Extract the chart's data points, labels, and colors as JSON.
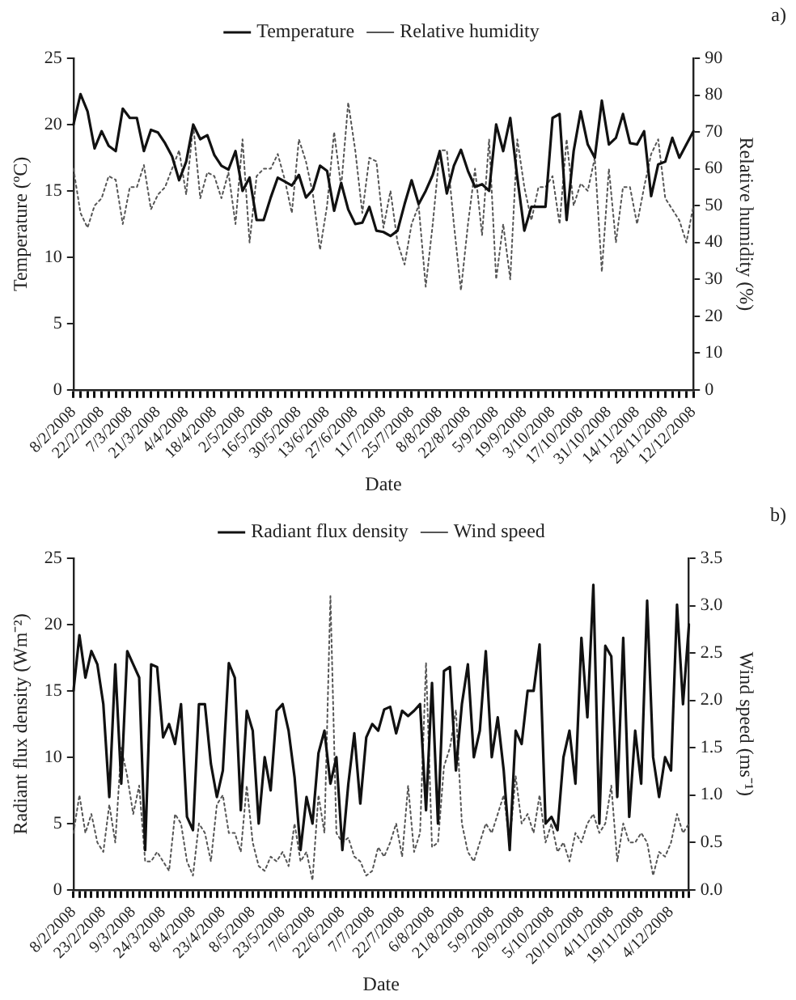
{
  "chart_data": [
    {
      "type": "line",
      "annotations": [
        "a)"
      ],
      "xlabel": "Date",
      "ylabel": "Temperature (ºC)",
      "y2label": "Relative humidity (%)",
      "legend": "top",
      "categories": [
        "8/2/2008",
        null,
        null,
        null,
        "22/2/2008",
        null,
        null,
        null,
        "7/3/2008",
        null,
        null,
        null,
        "21/3/2008",
        null,
        null,
        null,
        "4/4/2008",
        null,
        null,
        null,
        "18/4/2008",
        null,
        null,
        null,
        "2/5/2008",
        null,
        null,
        null,
        "16/5/2008",
        null,
        null,
        null,
        "30/5/2008",
        null,
        null,
        null,
        "13/6/2008",
        null,
        null,
        null,
        "27/6/2008",
        null,
        null,
        null,
        "11/7/2008",
        null,
        null,
        null,
        "25/7/2008",
        null,
        null,
        null,
        "8/8/2008",
        null,
        null,
        null,
        "22/8/2008",
        null,
        null,
        null,
        "5/9/2008",
        null,
        null,
        null,
        "19/9/2008",
        null,
        null,
        null,
        "3/10/2008",
        null,
        null,
        null,
        "17/10/2008",
        null,
        null,
        null,
        "31/10/2008",
        null,
        null,
        null,
        "14/11/2008",
        null,
        null,
        null,
        "28/11/2008",
        null,
        null,
        null,
        "12/12/2008"
      ],
      "ylim": [
        0,
        25
      ],
      "yticks": [
        0,
        5,
        10,
        15,
        20,
        25
      ],
      "y2lim": [
        0,
        90
      ],
      "y2ticks": [
        0,
        10,
        20,
        30,
        40,
        50,
        60,
        70,
        80,
        90
      ],
      "series": [
        {
          "name": "Temperature",
          "color": "#111111",
          "line_style": "solid",
          "values": [
            20,
            22.3,
            21,
            18.2,
            19.5,
            18.4,
            18,
            21.2,
            20.5,
            20.5,
            18,
            19.6,
            19.4,
            18.6,
            17.6,
            15.8,
            17.2,
            20,
            18.9,
            19.2,
            17.7,
            16.9,
            16.6,
            18,
            15,
            16,
            12.8,
            12.8,
            14.5,
            16,
            15.7,
            15.4,
            16.2,
            14.5,
            15.1,
            16.9,
            16.5,
            13.5,
            15.6,
            13.6,
            12.5,
            12.6,
            13.8,
            12,
            11.9,
            11.6,
            12,
            14,
            15.8,
            14,
            15,
            16.2,
            18,
            14.8,
            16.9,
            18.1,
            16.5,
            15.3,
            15.5,
            15,
            20,
            18,
            20.5,
            16,
            12,
            13.8,
            13.8,
            13.8,
            20.5,
            20.8,
            12.8,
            18,
            21,
            18.5,
            17.5,
            21.8,
            18.5,
            19,
            20.8,
            18.6,
            18.5,
            19.5,
            14.6,
            17,
            17.2,
            19,
            17.5,
            18.5,
            19.5
          ]
        },
        {
          "name": "Relative humidity",
          "color": "#555555",
          "line_style": "dotted",
          "axis": "y2",
          "values": [
            60,
            48,
            44,
            50,
            52,
            58,
            57,
            45,
            55,
            55,
            61,
            49,
            53,
            55,
            60,
            65,
            53,
            72,
            52,
            59,
            58,
            52,
            59,
            45,
            68,
            40,
            58,
            60,
            60,
            64,
            57,
            48,
            68,
            62,
            53,
            38,
            50,
            70,
            55,
            78,
            65,
            48,
            63,
            62,
            44,
            54,
            40,
            34,
            45,
            50,
            28,
            45,
            65,
            65,
            45,
            27,
            45,
            60,
            42,
            68,
            30,
            45,
            30,
            68,
            55,
            46,
            55,
            55,
            58,
            45,
            68,
            50,
            56,
            54,
            63,
            32,
            60,
            40,
            55,
            55,
            45,
            55,
            64,
            68,
            52,
            49,
            46,
            40,
            50
          ]
        }
      ]
    },
    {
      "type": "line",
      "annotations": [
        "b)"
      ],
      "xlabel": "Date",
      "ylabel": "Radiant flux density (Wm⁻²)",
      "y2label": "Wind speed (ms⁻¹)",
      "legend": "top",
      "categories": [
        "8/2/2008",
        null,
        null,
        null,
        null,
        "23/2/2008",
        null,
        null,
        null,
        null,
        "9/3/2008",
        null,
        null,
        null,
        null,
        "24/3/2008",
        null,
        null,
        null,
        null,
        "8/4/2008",
        null,
        null,
        null,
        null,
        "23/4/2008",
        null,
        null,
        null,
        null,
        "8/5/2008",
        null,
        null,
        null,
        null,
        "23/5/2008",
        null,
        null,
        null,
        null,
        "7/6/2008",
        null,
        null,
        null,
        null,
        "22/6/2008",
        null,
        null,
        null,
        null,
        "7/7/2008",
        null,
        null,
        null,
        null,
        "22/7/2008",
        null,
        null,
        null,
        null,
        "6/8/2008",
        null,
        null,
        null,
        null,
        "21/8/2008",
        null,
        null,
        null,
        null,
        "5/9/2008",
        null,
        null,
        null,
        null,
        "20/9/2008",
        null,
        null,
        null,
        null,
        "5/10/2008",
        null,
        null,
        null,
        null,
        "20/10/2008",
        null,
        null,
        null,
        null,
        "4/11/2008",
        null,
        null,
        null,
        null,
        "19/11/2008",
        null,
        null,
        null,
        null,
        "4/12/2008",
        null,
        null,
        null
      ],
      "ylim": [
        0,
        25
      ],
      "yticks": [
        0,
        5,
        10,
        15,
        20,
        25
      ],
      "y2lim": [
        0,
        3.5
      ],
      "y2ticks": [
        {
          "value": 0,
          "label": "0.0"
        },
        0.5,
        {
          "value": 1,
          "label": "1.0"
        },
        1.5,
        {
          "value": 2,
          "label": "2.0"
        },
        2.5,
        {
          "value": 3,
          "label": "3.0"
        },
        3.5
      ],
      "series": [
        {
          "name": "Radiant flux density",
          "color": "#111111",
          "line_style": "solid",
          "values": [
            15,
            19.2,
            16,
            18,
            17,
            14,
            7,
            17,
            8,
            18,
            17,
            16,
            3,
            17,
            16.8,
            11.5,
            12.5,
            11,
            14,
            5.5,
            4.5,
            14,
            14,
            9.5,
            7,
            9,
            17.1,
            16,
            6,
            13.5,
            12,
            5,
            10,
            7.5,
            13.5,
            14,
            12,
            8.5,
            3,
            7,
            5,
            10.3,
            12,
            8,
            10,
            3,
            8,
            11.8,
            6.5,
            11.5,
            12.5,
            12,
            13.6,
            13.8,
            11.8,
            13.5,
            13.1,
            13.5,
            14,
            6,
            15.6,
            5,
            16.5,
            16.8,
            9,
            14,
            17,
            10,
            12,
            18,
            10,
            13,
            9,
            3,
            12,
            11,
            15,
            15,
            18.5,
            5,
            5.5,
            4.5,
            10,
            12,
            8,
            19,
            13,
            23,
            5,
            18.4,
            17.6,
            7,
            19,
            5.5,
            12,
            8,
            21.8,
            10,
            7,
            10,
            9,
            21.5,
            14,
            20
          ]
        },
        {
          "name": "Wind speed",
          "color": "#555555",
          "line_style": "dotted",
          "axis": "y2",
          "values": [
            0.6,
            1,
            0.6,
            0.8,
            0.5,
            0.4,
            0.9,
            0.5,
            1.5,
            1.2,
            0.8,
            1.1,
            0.3,
            0.3,
            0.4,
            0.3,
            0.2,
            0.8,
            0.7,
            0.3,
            0.15,
            0.7,
            0.6,
            0.3,
            0.9,
            1,
            0.6,
            0.6,
            0.4,
            1.1,
            0.5,
            0.25,
            0.2,
            0.35,
            0.3,
            0.4,
            0.25,
            0.7,
            0.3,
            0.4,
            0.1,
            1,
            0.6,
            3.1,
            0.6,
            0.5,
            0.55,
            0.35,
            0.3,
            0.15,
            0.2,
            0.45,
            0.35,
            0.5,
            0.7,
            0.35,
            1.1,
            0.4,
            0.6,
            2.4,
            0.45,
            0.5,
            1.3,
            1.5,
            1.9,
            0.7,
            0.4,
            0.3,
            0.5,
            0.7,
            0.6,
            0.8,
            1,
            0.5,
            1.2,
            0.7,
            0.8,
            0.6,
            1,
            0.5,
            0.7,
            0.4,
            0.5,
            0.3,
            0.6,
            0.5,
            0.7,
            0.8,
            0.6,
            0.7,
            1.1,
            0.3,
            0.7,
            0.5,
            0.5,
            0.6,
            0.5,
            0.15,
            0.4,
            0.35,
            0.5,
            0.8,
            0.6,
            0.7
          ]
        }
      ]
    }
  ]
}
